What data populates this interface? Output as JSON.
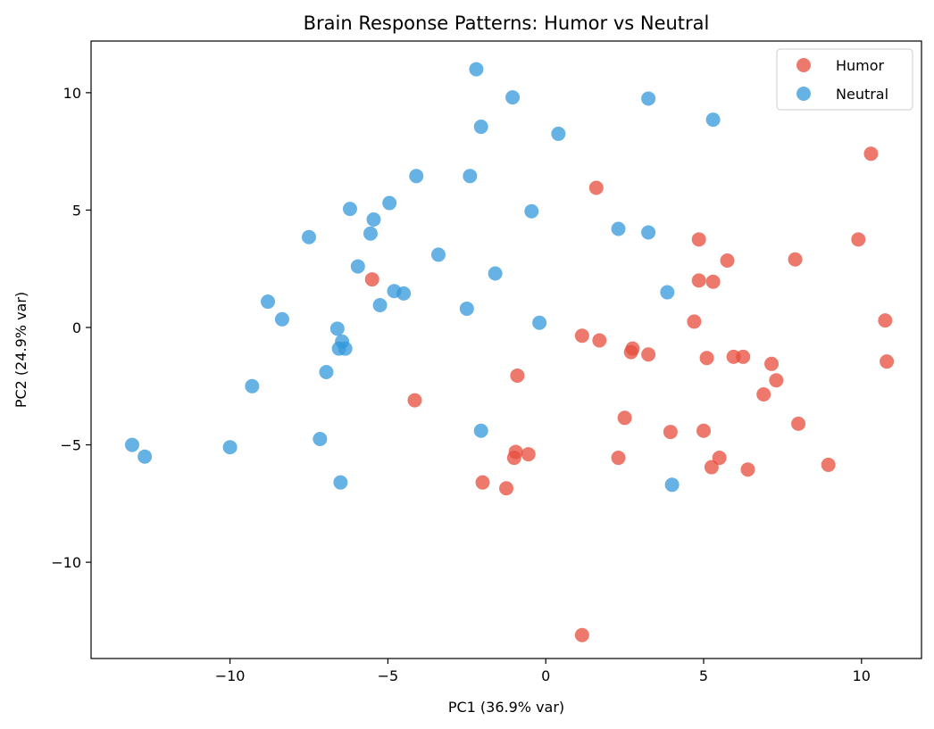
{
  "chart_data": {
    "type": "scatter",
    "title": "Brain Response Patterns: Humor vs Neutral",
    "xlabel": "PC1 (36.9% var)",
    "ylabel": "PC2 (24.9% var)",
    "xlim": [
      -14.4,
      11.9
    ],
    "ylim": [
      -14.1,
      12.2
    ],
    "xticks": [
      -10,
      -5,
      0,
      5,
      10
    ],
    "yticks": [
      -10,
      -5,
      0,
      5,
      10
    ],
    "grid": false,
    "legend_position": "top-right",
    "series": [
      {
        "name": "Humor",
        "color": "#e74c3c",
        "points": [
          [
            10.3,
            7.4
          ],
          [
            1.6,
            5.95
          ],
          [
            9.9,
            3.75
          ],
          [
            4.85,
            3.75
          ],
          [
            5.75,
            2.85
          ],
          [
            7.9,
            2.9
          ],
          [
            -5.5,
            2.05
          ],
          [
            4.85,
            2.0
          ],
          [
            5.3,
            1.95
          ],
          [
            4.7,
            0.25
          ],
          [
            10.75,
            0.3
          ],
          [
            1.15,
            -0.35
          ],
          [
            1.7,
            -0.55
          ],
          [
            2.75,
            -0.9
          ],
          [
            2.7,
            -1.05
          ],
          [
            3.25,
            -1.15
          ],
          [
            5.1,
            -1.3
          ],
          [
            5.95,
            -1.25
          ],
          [
            6.25,
            -1.25
          ],
          [
            7.15,
            -1.55
          ],
          [
            10.8,
            -1.45
          ],
          [
            -0.9,
            -2.05
          ],
          [
            7.3,
            -2.25
          ],
          [
            6.9,
            -2.85
          ],
          [
            -4.15,
            -3.1
          ],
          [
            2.5,
            -3.85
          ],
          [
            8.0,
            -4.1
          ],
          [
            3.95,
            -4.45
          ],
          [
            5.0,
            -4.4
          ],
          [
            -0.95,
            -5.3
          ],
          [
            -0.55,
            -5.4
          ],
          [
            -1.0,
            -5.55
          ],
          [
            2.3,
            -5.55
          ],
          [
            5.5,
            -5.55
          ],
          [
            5.25,
            -5.95
          ],
          [
            6.4,
            -6.05
          ],
          [
            8.95,
            -5.85
          ],
          [
            -2.0,
            -6.6
          ],
          [
            -1.25,
            -6.85
          ],
          [
            1.15,
            -13.1
          ]
        ]
      },
      {
        "name": "Neutral",
        "color": "#3498db",
        "points": [
          [
            -2.2,
            11.0
          ],
          [
            -1.05,
            9.8
          ],
          [
            3.25,
            9.75
          ],
          [
            5.3,
            8.85
          ],
          [
            -2.05,
            8.55
          ],
          [
            0.4,
            8.25
          ],
          [
            -4.1,
            6.45
          ],
          [
            -2.4,
            6.45
          ],
          [
            -4.95,
            5.3
          ],
          [
            -6.2,
            5.05
          ],
          [
            -0.45,
            4.95
          ],
          [
            -5.45,
            4.6
          ],
          [
            2.3,
            4.2
          ],
          [
            3.25,
            4.05
          ],
          [
            -5.55,
            4.0
          ],
          [
            -7.5,
            3.85
          ],
          [
            -3.4,
            3.1
          ],
          [
            -5.95,
            2.6
          ],
          [
            -1.6,
            2.3
          ],
          [
            -4.8,
            1.55
          ],
          [
            -4.5,
            1.45
          ],
          [
            3.85,
            1.5
          ],
          [
            -8.8,
            1.1
          ],
          [
            -5.25,
            0.95
          ],
          [
            -2.5,
            0.8
          ],
          [
            -8.35,
            0.35
          ],
          [
            -0.2,
            0.2
          ],
          [
            -6.6,
            -0.05
          ],
          [
            -6.45,
            -0.6
          ],
          [
            -6.55,
            -0.9
          ],
          [
            -6.35,
            -0.9
          ],
          [
            -6.95,
            -1.9
          ],
          [
            -9.3,
            -2.5
          ],
          [
            -2.05,
            -4.4
          ],
          [
            -7.15,
            -4.75
          ],
          [
            -13.1,
            -5.0
          ],
          [
            -10.0,
            -5.1
          ],
          [
            -12.7,
            -5.5
          ],
          [
            -6.5,
            -6.6
          ],
          [
            4.0,
            -6.7
          ]
        ]
      }
    ]
  }
}
